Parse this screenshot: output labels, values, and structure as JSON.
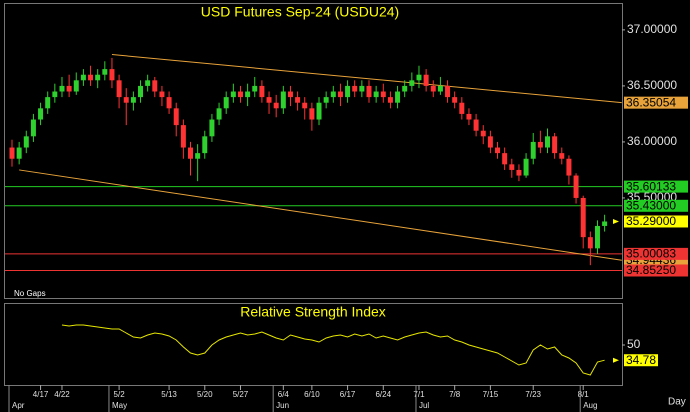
{
  "chart_data": [
    {
      "type": "candlestick",
      "title": "USD Futures Sep-24 (USDU24)",
      "note": "No Gaps",
      "categories": [
        null,
        null,
        null,
        null,
        "4/17",
        null,
        null,
        "4/22",
        null,
        null,
        null,
        null,
        null,
        null,
        null,
        "5/2",
        null,
        null,
        null,
        null,
        null,
        null,
        "5/13",
        null,
        null,
        null,
        null,
        "5/20",
        null,
        null,
        null,
        null,
        "5/27",
        null,
        null,
        null,
        null,
        null,
        "6/4",
        null,
        null,
        null,
        "6/10",
        null,
        null,
        null,
        null,
        "6/17",
        null,
        null,
        null,
        null,
        "6/24",
        null,
        null,
        null,
        null,
        "7/1",
        null,
        null,
        null,
        null,
        "7/8",
        null,
        null,
        null,
        null,
        "7/15",
        null,
        null,
        null,
        null,
        null,
        "7/23",
        null,
        null,
        null,
        null,
        null,
        null,
        "8/1",
        null,
        null,
        null
      ],
      "month_labels": [
        "Apr",
        null,
        null,
        null,
        null,
        null,
        null,
        null,
        null,
        null,
        null,
        null,
        null,
        null,
        "May",
        null,
        null,
        null,
        null,
        null,
        null,
        null,
        null,
        null,
        null,
        null,
        null,
        null,
        null,
        null,
        null,
        null,
        null,
        null,
        null,
        null,
        null,
        "Jun",
        null,
        null,
        null,
        null,
        null,
        null,
        null,
        null,
        null,
        null,
        null,
        null,
        null,
        null,
        null,
        null,
        null,
        null,
        null,
        "Jul",
        null,
        null,
        null,
        null,
        null,
        null,
        null,
        null,
        null,
        null,
        null,
        null,
        null,
        null,
        null,
        null,
        null,
        null,
        null,
        null,
        null,
        null,
        "Aug",
        null,
        null,
        null
      ],
      "open": [
        35.95,
        35.85,
        35.95,
        36.05,
        36.2,
        36.3,
        36.4,
        36.45,
        36.5,
        36.45,
        36.55,
        36.6,
        36.55,
        36.6,
        36.65,
        36.55,
        36.4,
        36.35,
        36.4,
        36.5,
        36.55,
        36.45,
        36.4,
        36.3,
        36.15,
        35.95,
        35.85,
        35.9,
        36.05,
        36.2,
        36.3,
        36.4,
        36.45,
        36.4,
        36.45,
        36.5,
        36.4,
        36.35,
        36.3,
        36.45,
        36.4,
        36.35,
        36.3,
        36.2,
        36.35,
        36.4,
        36.45,
        36.4,
        36.5,
        36.45,
        36.5,
        36.4,
        36.45,
        36.4,
        36.35,
        36.45,
        36.5,
        36.55,
        36.6,
        36.5,
        36.45,
        36.5,
        36.4,
        36.35,
        36.25,
        36.2,
        36.1,
        36.05,
        35.95,
        35.9,
        35.8,
        35.75,
        35.7,
        35.85,
        36.0,
        35.95,
        36.05,
        35.9,
        35.85,
        35.7,
        35.5,
        35.15,
        35.05,
        35.25
      ],
      "high": [
        36.02,
        36.0,
        36.1,
        36.25,
        36.35,
        36.45,
        36.52,
        36.58,
        36.6,
        36.62,
        36.65,
        36.68,
        36.65,
        36.72,
        36.75,
        36.6,
        36.48,
        36.45,
        36.55,
        36.6,
        36.58,
        36.5,
        36.45,
        36.35,
        36.2,
        36.0,
        35.98,
        36.1,
        36.25,
        36.35,
        36.45,
        36.52,
        36.5,
        36.52,
        36.58,
        36.55,
        36.45,
        36.42,
        36.5,
        36.5,
        36.45,
        36.4,
        36.35,
        36.4,
        36.45,
        36.5,
        36.52,
        36.55,
        36.55,
        36.55,
        36.55,
        36.5,
        36.52,
        36.45,
        36.5,
        36.55,
        36.62,
        36.68,
        36.65,
        36.55,
        36.58,
        36.55,
        36.45,
        36.4,
        36.3,
        36.25,
        36.15,
        36.1,
        36.0,
        35.95,
        35.85,
        35.8,
        35.9,
        36.08,
        36.1,
        36.12,
        36.08,
        35.95,
        35.88,
        35.72,
        35.52,
        35.2,
        35.3,
        35.35
      ],
      "low": [
        35.78,
        35.8,
        35.9,
        36.0,
        36.15,
        36.25,
        36.35,
        36.4,
        36.4,
        36.42,
        36.5,
        36.5,
        36.48,
        36.55,
        36.48,
        36.3,
        36.15,
        36.28,
        36.35,
        36.45,
        36.4,
        36.32,
        36.25,
        36.05,
        35.85,
        35.7,
        35.65,
        35.85,
        36.0,
        36.15,
        36.25,
        36.35,
        36.35,
        36.32,
        36.4,
        36.35,
        36.25,
        36.22,
        36.25,
        36.32,
        36.28,
        36.2,
        36.1,
        36.15,
        36.3,
        36.35,
        36.32,
        36.35,
        36.4,
        36.4,
        36.35,
        36.35,
        36.35,
        36.3,
        36.3,
        36.4,
        36.45,
        36.48,
        36.45,
        36.4,
        36.42,
        36.35,
        36.3,
        36.2,
        36.15,
        36.05,
        35.98,
        35.9,
        35.85,
        35.75,
        35.68,
        35.65,
        35.68,
        35.8,
        35.9,
        35.9,
        35.85,
        35.8,
        35.62,
        35.45,
        35.05,
        34.9,
        35.0,
        35.2
      ],
      "close": [
        35.85,
        35.95,
        36.05,
        36.2,
        36.3,
        36.4,
        36.45,
        36.5,
        36.45,
        36.55,
        36.6,
        36.55,
        36.6,
        36.65,
        36.55,
        36.4,
        36.35,
        36.4,
        36.5,
        36.55,
        36.45,
        36.4,
        36.3,
        36.15,
        35.95,
        35.85,
        35.9,
        36.05,
        36.2,
        36.3,
        36.4,
        36.45,
        36.4,
        36.45,
        36.5,
        36.4,
        36.35,
        36.3,
        36.45,
        36.4,
        36.35,
        36.3,
        36.2,
        36.35,
        36.4,
        36.45,
        36.4,
        36.5,
        36.45,
        36.5,
        36.4,
        36.45,
        36.4,
        36.35,
        36.45,
        36.5,
        36.55,
        36.6,
        36.5,
        36.45,
        36.5,
        36.4,
        36.35,
        36.25,
        36.2,
        36.1,
        36.05,
        35.95,
        35.9,
        35.8,
        35.75,
        35.7,
        35.85,
        36.0,
        35.95,
        36.05,
        35.9,
        35.85,
        35.7,
        35.5,
        35.15,
        35.05,
        35.25,
        35.29
      ],
      "last_label": "35.29000",
      "up_color": "#2ed12e",
      "down_color": "#ff3333",
      "ylim": [
        34.607,
        37.24
      ],
      "yticks": [
        {
          "value": 37,
          "label": "37.00000"
        },
        {
          "value": 36.5,
          "label": "36.50000"
        },
        {
          "value": 36,
          "label": "36.00000"
        },
        {
          "value": 35.5,
          "label": "35.50000"
        }
      ],
      "trendlines": [
        {
          "color": "#e8a33a",
          "points": [
            [
              14,
              36.78
            ],
            [
              85.4,
              36.35054
            ]
          ],
          "label": "36.35054"
        },
        {
          "color": "#e8a33a",
          "points": [
            [
              1,
              35.75
            ],
            [
              85.4,
              34.94436
            ]
          ],
          "label": "34.94436"
        }
      ],
      "levels": [
        {
          "value": 35.60133,
          "label": "35.60133",
          "color": "#22cc22"
        },
        {
          "value": 35.43,
          "label": "35.43000",
          "color": "#22cc22"
        },
        {
          "value": 35.00083,
          "label": "35.00083",
          "color": "#ee3333"
        },
        {
          "value": 34.8525,
          "label": "34.85250",
          "color": "#ee3333"
        }
      ]
    },
    {
      "type": "line",
      "title": "Relative Strength Index",
      "interval": "Day",
      "color": "#e6e600",
      "values": [
        null,
        null,
        null,
        null,
        null,
        null,
        null,
        70,
        69,
        70,
        70,
        69,
        68,
        67,
        66,
        66,
        62,
        58,
        57,
        60,
        62,
        61,
        59,
        55,
        48,
        42,
        40,
        42,
        50,
        55,
        58,
        60,
        62,
        60,
        61,
        63,
        60,
        57,
        55,
        60,
        58,
        56,
        55,
        53,
        57,
        59,
        60,
        58,
        61,
        59,
        61,
        57,
        59,
        57,
        55,
        58,
        60,
        62,
        63,
        60,
        58,
        59,
        55,
        53,
        50,
        48,
        46,
        44,
        42,
        38,
        34,
        30,
        32,
        45,
        50,
        46,
        48,
        40,
        37,
        32,
        22,
        20,
        33,
        34.78
      ],
      "ylim": [
        10,
        90
      ],
      "yticks": [
        50
      ]
    }
  ]
}
